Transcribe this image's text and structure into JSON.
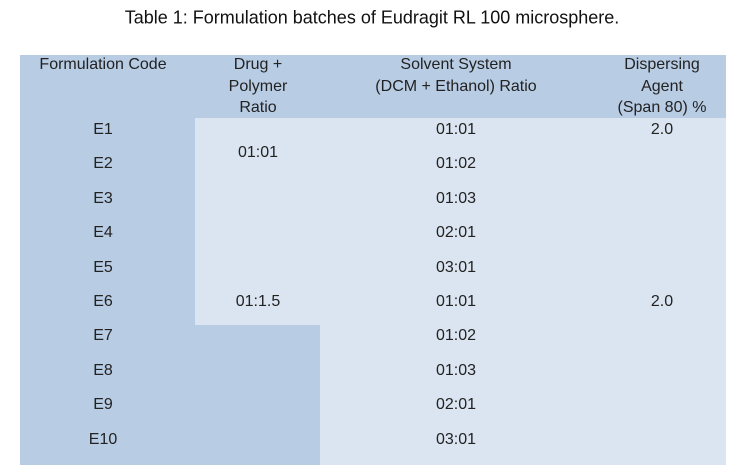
{
  "title": "Table 1: Formulation batches of Eudragit RL 100 microsphere.",
  "table": {
    "header": {
      "code": [
        "Formulation Code"
      ],
      "drug_polymer": [
        "Drug  +",
        "Polymer",
        "Ratio"
      ],
      "solvent": [
        "Solvent System",
        "(DCM + Ethanol) Ratio"
      ],
      "agent": [
        "Dispersing",
        "Agent",
        "(Span 80) %"
      ]
    },
    "codes": [
      "E1",
      "E2",
      "E3",
      "E4",
      "E5",
      "E6",
      "E7",
      "E8",
      "E9",
      "E10"
    ],
    "solvent_ratios": [
      "01:01",
      "01:02",
      "01:03",
      "02:01",
      "03:01",
      "01:01",
      "01:02",
      "01:03",
      "02:01",
      "03:01"
    ],
    "drug_ratios": [
      "01:01",
      "01:1.5"
    ],
    "agent": [
      "2.0",
      "2.0"
    ]
  }
}
